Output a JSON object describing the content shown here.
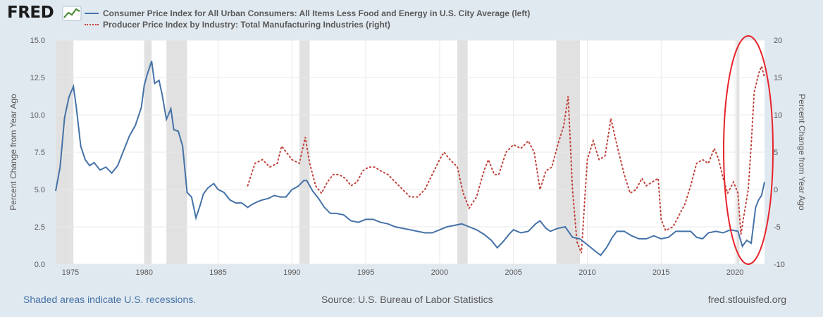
{
  "brand": {
    "name": "FRED"
  },
  "footer": {
    "recession_note": "Shaded areas indicate U.S. recessions.",
    "source": "Source: U.S. Bureau of Labor Statistics",
    "site": "fred.stlouisfed.org"
  },
  "chart_data": {
    "type": "line",
    "title": "",
    "xlabel": "",
    "ylabel_left": "Percent Change from Year Ago",
    "ylabel_right": "Percent Change from Year Ago",
    "xlim": [
      1974.0,
      2022.0
    ],
    "ylim_left": [
      0,
      15
    ],
    "ylim_right": [
      -10,
      20
    ],
    "x_ticks": [
      "1975",
      "1980",
      "1985",
      "1990",
      "1995",
      "2000",
      "2005",
      "2010",
      "2015",
      "2020"
    ],
    "y_ticks_left": [
      "0.0",
      "2.5",
      "5.0",
      "7.5",
      "10.0",
      "12.5",
      "15.0"
    ],
    "y_ticks_right": [
      "-10",
      "-5",
      "0",
      "5",
      "10",
      "15",
      "20"
    ],
    "grid": true,
    "legend_position": "top",
    "recessions": [
      [
        1973.9,
        1975.2
      ],
      [
        1980.0,
        1980.5
      ],
      [
        1981.5,
        1982.9
      ],
      [
        1990.5,
        1991.2
      ],
      [
        2001.2,
        2001.9
      ],
      [
        2007.9,
        2009.5
      ],
      [
        2020.1,
        2020.3
      ]
    ],
    "annotation": "red ellipse highlighting 2020-2022",
    "colors": {
      "cpi": "#4572a7",
      "ppi": "#c1423b",
      "annotation": "#e8232a"
    },
    "series": [
      {
        "name": "Consumer Price Index for All Urban Consumers: All Items Less Food and Energy in U.S. City Average (left)",
        "axis": "left",
        "style": "solid",
        "points": [
          [
            1974.0,
            4.9
          ],
          [
            1974.3,
            6.5
          ],
          [
            1974.6,
            9.8
          ],
          [
            1974.9,
            11.2
          ],
          [
            1975.2,
            11.9
          ],
          [
            1975.4,
            10.5
          ],
          [
            1975.7,
            7.9
          ],
          [
            1976.0,
            7.0
          ],
          [
            1976.3,
            6.6
          ],
          [
            1976.6,
            6.8
          ],
          [
            1977.0,
            6.3
          ],
          [
            1977.4,
            6.5
          ],
          [
            1977.8,
            6.1
          ],
          [
            1978.2,
            6.6
          ],
          [
            1978.6,
            7.6
          ],
          [
            1979.0,
            8.6
          ],
          [
            1979.4,
            9.3
          ],
          [
            1979.8,
            10.5
          ],
          [
            1980.0,
            12.0
          ],
          [
            1980.2,
            12.7
          ],
          [
            1980.5,
            13.6
          ],
          [
            1980.7,
            12.1
          ],
          [
            1981.0,
            12.3
          ],
          [
            1981.2,
            11.4
          ],
          [
            1981.5,
            9.7
          ],
          [
            1981.8,
            10.4
          ],
          [
            1982.0,
            9.0
          ],
          [
            1982.3,
            8.9
          ],
          [
            1982.6,
            7.9
          ],
          [
            1982.9,
            4.8
          ],
          [
            1983.2,
            4.5
          ],
          [
            1983.5,
            3.1
          ],
          [
            1983.8,
            4.0
          ],
          [
            1984.0,
            4.7
          ],
          [
            1984.3,
            5.1
          ],
          [
            1984.7,
            5.4
          ],
          [
            1985.0,
            5.0
          ],
          [
            1985.4,
            4.8
          ],
          [
            1985.8,
            4.3
          ],
          [
            1986.2,
            4.1
          ],
          [
            1986.6,
            4.1
          ],
          [
            1987.0,
            3.8
          ],
          [
            1987.3,
            4.0
          ],
          [
            1987.7,
            4.2
          ],
          [
            1988.0,
            4.3
          ],
          [
            1988.4,
            4.4
          ],
          [
            1988.8,
            4.6
          ],
          [
            1989.2,
            4.5
          ],
          [
            1989.6,
            4.5
          ],
          [
            1990.0,
            5.0
          ],
          [
            1990.4,
            5.2
          ],
          [
            1990.8,
            5.6
          ],
          [
            1991.0,
            5.6
          ],
          [
            1991.4,
            4.9
          ],
          [
            1991.8,
            4.4
          ],
          [
            1992.2,
            3.8
          ],
          [
            1992.6,
            3.4
          ],
          [
            1993.0,
            3.4
          ],
          [
            1993.5,
            3.3
          ],
          [
            1994.0,
            2.9
          ],
          [
            1994.5,
            2.8
          ],
          [
            1995.0,
            3.0
          ],
          [
            1995.5,
            3.0
          ],
          [
            1996.0,
            2.8
          ],
          [
            1996.5,
            2.7
          ],
          [
            1997.0,
            2.5
          ],
          [
            1997.5,
            2.4
          ],
          [
            1998.0,
            2.3
          ],
          [
            1998.5,
            2.2
          ],
          [
            1999.0,
            2.1
          ],
          [
            1999.5,
            2.1
          ],
          [
            2000.0,
            2.3
          ],
          [
            2000.5,
            2.5
          ],
          [
            2001.0,
            2.6
          ],
          [
            2001.5,
            2.7
          ],
          [
            2002.0,
            2.5
          ],
          [
            2002.5,
            2.3
          ],
          [
            2003.0,
            2.0
          ],
          [
            2003.5,
            1.6
          ],
          [
            2003.9,
            1.1
          ],
          [
            2004.3,
            1.5
          ],
          [
            2004.7,
            2.0
          ],
          [
            2005.0,
            2.3
          ],
          [
            2005.5,
            2.1
          ],
          [
            2006.0,
            2.2
          ],
          [
            2006.5,
            2.7
          ],
          [
            2006.8,
            2.9
          ],
          [
            2007.2,
            2.4
          ],
          [
            2007.5,
            2.2
          ],
          [
            2008.0,
            2.4
          ],
          [
            2008.5,
            2.5
          ],
          [
            2009.0,
            1.8
          ],
          [
            2009.5,
            1.7
          ],
          [
            2010.0,
            1.3
          ],
          [
            2010.5,
            0.9
          ],
          [
            2010.9,
            0.6
          ],
          [
            2011.3,
            1.1
          ],
          [
            2011.7,
            1.8
          ],
          [
            2012.0,
            2.2
          ],
          [
            2012.5,
            2.2
          ],
          [
            2013.0,
            1.9
          ],
          [
            2013.5,
            1.7
          ],
          [
            2014.0,
            1.7
          ],
          [
            2014.5,
            1.9
          ],
          [
            2015.0,
            1.7
          ],
          [
            2015.5,
            1.8
          ],
          [
            2016.0,
            2.2
          ],
          [
            2016.5,
            2.2
          ],
          [
            2017.0,
            2.2
          ],
          [
            2017.4,
            1.8
          ],
          [
            2017.8,
            1.7
          ],
          [
            2018.2,
            2.1
          ],
          [
            2018.7,
            2.2
          ],
          [
            2019.2,
            2.1
          ],
          [
            2019.7,
            2.3
          ],
          [
            2020.2,
            2.2
          ],
          [
            2020.5,
            1.2
          ],
          [
            2020.8,
            1.6
          ],
          [
            2021.1,
            1.4
          ],
          [
            2021.4,
            3.8
          ],
          [
            2021.6,
            4.3
          ],
          [
            2021.8,
            4.6
          ],
          [
            2022.0,
            5.5
          ]
        ]
      },
      {
        "name": "Producer Price Index by Industry: Total Manufacturing Industries (right)",
        "axis": "right",
        "style": "dotted",
        "points": [
          [
            1987.0,
            0.5
          ],
          [
            1987.5,
            3.5
          ],
          [
            1988.0,
            4.0
          ],
          [
            1988.5,
            3.0
          ],
          [
            1989.0,
            3.5
          ],
          [
            1989.3,
            5.8
          ],
          [
            1989.7,
            4.8
          ],
          [
            1990.0,
            4.0
          ],
          [
            1990.5,
            3.5
          ],
          [
            1990.9,
            7.0
          ],
          [
            1991.2,
            3.5
          ],
          [
            1991.6,
            0.5
          ],
          [
            1992.0,
            -0.5
          ],
          [
            1992.4,
            1.0
          ],
          [
            1992.8,
            2.0
          ],
          [
            1993.2,
            2.0
          ],
          [
            1993.6,
            1.5
          ],
          [
            1994.0,
            0.5
          ],
          [
            1994.4,
            1.0
          ],
          [
            1994.8,
            2.5
          ],
          [
            1995.2,
            3.0
          ],
          [
            1995.6,
            3.0
          ],
          [
            1996.0,
            2.5
          ],
          [
            1996.5,
            2.0
          ],
          [
            1997.0,
            1.0
          ],
          [
            1997.5,
            0.0
          ],
          [
            1998.0,
            -1.0
          ],
          [
            1998.5,
            -1.0
          ],
          [
            1999.0,
            0.0
          ],
          [
            1999.5,
            2.0
          ],
          [
            2000.0,
            4.0
          ],
          [
            2000.3,
            5.0
          ],
          [
            2000.7,
            4.0
          ],
          [
            2001.2,
            3.0
          ],
          [
            2001.6,
            -0.5
          ],
          [
            2002.0,
            -2.5
          ],
          [
            2002.5,
            -1.0
          ],
          [
            2003.0,
            2.5
          ],
          [
            2003.3,
            4.0
          ],
          [
            2003.7,
            2.0
          ],
          [
            2004.0,
            2.0
          ],
          [
            2004.5,
            5.0
          ],
          [
            2005.0,
            6.0
          ],
          [
            2005.5,
            5.5
          ],
          [
            2006.0,
            6.5
          ],
          [
            2006.4,
            5.0
          ],
          [
            2006.8,
            0.0
          ],
          [
            2007.2,
            2.5
          ],
          [
            2007.6,
            3.0
          ],
          [
            2008.0,
            6.0
          ],
          [
            2008.4,
            8.5
          ],
          [
            2008.7,
            12.5
          ],
          [
            2009.0,
            0.0
          ],
          [
            2009.3,
            -7.0
          ],
          [
            2009.6,
            -8.5
          ],
          [
            2010.0,
            4.0
          ],
          [
            2010.4,
            6.5
          ],
          [
            2010.8,
            4.0
          ],
          [
            2011.2,
            4.5
          ],
          [
            2011.6,
            9.5
          ],
          [
            2012.0,
            6.0
          ],
          [
            2012.5,
            2.0
          ],
          [
            2012.9,
            -0.5
          ],
          [
            2013.3,
            0.0
          ],
          [
            2013.7,
            1.5
          ],
          [
            2014.0,
            0.5
          ],
          [
            2014.4,
            1.0
          ],
          [
            2014.8,
            1.5
          ],
          [
            2015.0,
            -4.0
          ],
          [
            2015.3,
            -5.5
          ],
          [
            2015.8,
            -5.0
          ],
          [
            2016.2,
            -3.5
          ],
          [
            2016.6,
            -2.0
          ],
          [
            2017.0,
            0.5
          ],
          [
            2017.4,
            3.5
          ],
          [
            2017.8,
            4.0
          ],
          [
            2018.2,
            3.5
          ],
          [
            2018.6,
            5.5
          ],
          [
            2018.9,
            4.0
          ],
          [
            2019.2,
            1.5
          ],
          [
            2019.5,
            -0.5
          ],
          [
            2019.9,
            1.0
          ],
          [
            2020.2,
            -0.5
          ],
          [
            2020.4,
            -6.0
          ],
          [
            2020.6,
            -3.5
          ],
          [
            2020.9,
            0.0
          ],
          [
            2021.1,
            6.0
          ],
          [
            2021.3,
            13.0
          ],
          [
            2021.6,
            15.5
          ],
          [
            2021.8,
            16.5
          ],
          [
            2022.0,
            15.0
          ]
        ]
      }
    ]
  }
}
